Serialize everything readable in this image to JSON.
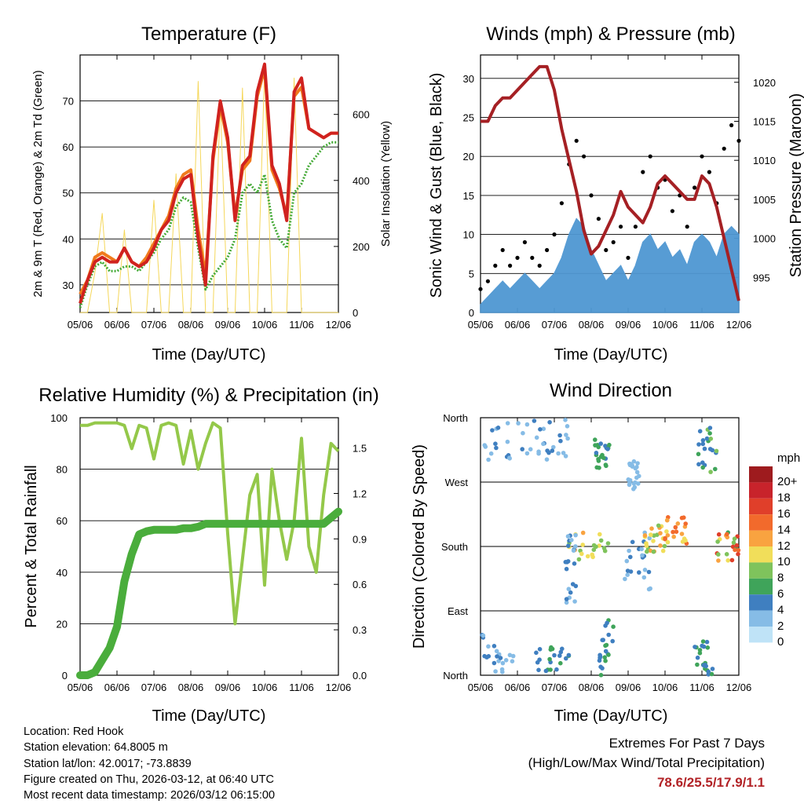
{
  "x_ticks": [
    "05/06",
    "06/06",
    "07/06",
    "08/06",
    "09/06",
    "10/06",
    "11/06",
    "12/06"
  ],
  "x_label": "Time (Day/UTC)",
  "colors": {
    "red": "#d0221f",
    "orange": "#f07a1c",
    "green": "#44aa36",
    "yellow": "#f5d75a",
    "maroon": "#a52024",
    "blue": "#4f97d2",
    "black": "#000000",
    "lightgreen": "#94c84a",
    "darkgreen": "#4aad3c"
  },
  "chart_data": [
    {
      "type": "line",
      "title": "Temperature (F)",
      "ylabel": "2m & 9m T (Red, Orange) & 2m Td (Green)",
      "y2label": "Solar Insolation (Yellow)",
      "ylim": [
        24,
        80
      ],
      "yticks": [
        30,
        40,
        50,
        60,
        70
      ],
      "y2lim": [
        0,
        780
      ],
      "y2ticks": [
        0,
        200,
        400,
        600
      ],
      "x": [
        0,
        0.2,
        0.4,
        0.6,
        0.8,
        1,
        1.2,
        1.4,
        1.6,
        1.8,
        2,
        2.2,
        2.4,
        2.6,
        2.8,
        3,
        3.2,
        3.4,
        3.6,
        3.8,
        4,
        4.2,
        4.4,
        4.6,
        4.8,
        5,
        5.2,
        5.4,
        5.6,
        5.8,
        6,
        6.2,
        6.4,
        6.6,
        6.8,
        7
      ],
      "series": [
        {
          "name": "2m T",
          "color": "red",
          "values": [
            26,
            31,
            35,
            36,
            35,
            35,
            38,
            35,
            34,
            35,
            38,
            42,
            44,
            50,
            53,
            54,
            40,
            30,
            58,
            70,
            62,
            44,
            56,
            58,
            72,
            78,
            56,
            52,
            44,
            72,
            75,
            64,
            63,
            62,
            63,
            63
          ]
        },
        {
          "name": "9m T",
          "color": "orange",
          "values": [
            28,
            31,
            36,
            37,
            36,
            35,
            38,
            35,
            34,
            36,
            39,
            42,
            45,
            51,
            54,
            55,
            42,
            32,
            57,
            69,
            61,
            45,
            55,
            57,
            71,
            77,
            55,
            51,
            45,
            71,
            73,
            64,
            63,
            62,
            63,
            63
          ]
        },
        {
          "name": "2m Td",
          "color": "green",
          "values": [
            25,
            30,
            34,
            35,
            33,
            33,
            34,
            34,
            33,
            35,
            37,
            40,
            42,
            47,
            49,
            48,
            38,
            29,
            32,
            34,
            36,
            40,
            50,
            52,
            50,
            54,
            44,
            40,
            38,
            50,
            52,
            56,
            58,
            60,
            61,
            61
          ]
        },
        {
          "name": "Solar",
          "color": "yellow",
          "values": [
            0,
            0,
            120,
            300,
            0,
            0,
            250,
            0,
            0,
            0,
            340,
            0,
            0,
            420,
            0,
            0,
            700,
            0,
            0,
            640,
            0,
            0,
            680,
            0,
            0,
            740,
            0,
            0,
            0,
            710,
            0,
            0,
            0,
            0,
            0,
            0
          ]
        }
      ]
    },
    {
      "type": "scatter",
      "title": "Winds (mph) & Pressure (mb)",
      "ylabel": "Sonic Wind & Gust (Blue, Black)",
      "y2label": "Station Pressure (Maroon)",
      "ylim": [
        0,
        33
      ],
      "yticks": [
        0,
        5,
        10,
        15,
        20,
        25,
        30
      ],
      "y2lim": [
        990.5,
        1023.5
      ],
      "y2ticks": [
        995,
        1000,
        1005,
        1010,
        1015,
        1020
      ],
      "x": [
        0,
        0.2,
        0.4,
        0.6,
        0.8,
        1,
        1.2,
        1.4,
        1.6,
        1.8,
        2,
        2.2,
        2.4,
        2.6,
        2.8,
        3,
        3.2,
        3.4,
        3.6,
        3.8,
        4,
        4.2,
        4.4,
        4.6,
        4.8,
        5,
        5.2,
        5.4,
        5.6,
        5.8,
        6,
        6.2,
        6.4,
        6.6,
        6.8,
        7
      ],
      "series": [
        {
          "name": "Sonic Wind",
          "color": "blue",
          "values": [
            1,
            2,
            3,
            4,
            3,
            4,
            5,
            4,
            3,
            4,
            5,
            7,
            10,
            12,
            11,
            8,
            6,
            4,
            5,
            6,
            4,
            6,
            9,
            10,
            8,
            9,
            7,
            8,
            6,
            9,
            10,
            9,
            7,
            10,
            11,
            10
          ]
        },
        {
          "name": "Gust",
          "color": "black",
          "values": [
            3,
            4,
            6,
            8,
            6,
            7,
            9,
            7,
            6,
            8,
            10,
            14,
            19,
            22,
            20,
            15,
            12,
            8,
            9,
            11,
            7,
            11,
            18,
            20,
            16,
            17,
            13,
            15,
            11,
            16,
            20,
            18,
            14,
            21,
            24,
            22
          ]
        },
        {
          "name": "Pressure",
          "color": "maroon",
          "values": [
            1015,
            1015,
            1017,
            1018,
            1018,
            1019,
            1020,
            1021,
            1022,
            1022,
            1019,
            1014,
            1010,
            1006,
            1001,
            998,
            999,
            1001,
            1003,
            1006,
            1004,
            1003,
            1002,
            1004,
            1007,
            1008,
            1007,
            1006,
            1005,
            1005,
            1008,
            1007,
            1004,
            1000,
            996,
            992
          ]
        }
      ]
    },
    {
      "type": "line",
      "title": "Relative Humidity (%) & Precipitation (in)",
      "ylabel": "Percent & Total Rainfall",
      "ylim": [
        0,
        100
      ],
      "yticks": [
        0,
        20,
        40,
        60,
        80,
        100
      ],
      "y2lim": [
        0,
        1.7
      ],
      "y2ticks": [
        "0.0",
        "0.3",
        "0.6",
        "0.9",
        "1.2",
        "1.5"
      ],
      "x": [
        0,
        0.2,
        0.4,
        0.6,
        0.8,
        1,
        1.2,
        1.4,
        1.6,
        1.8,
        2,
        2.2,
        2.4,
        2.6,
        2.8,
        3,
        3.2,
        3.4,
        3.6,
        3.8,
        4,
        4.2,
        4.4,
        4.6,
        4.8,
        5,
        5.2,
        5.4,
        5.6,
        5.8,
        6,
        6.2,
        6.4,
        6.6,
        6.8,
        7
      ],
      "series": [
        {
          "name": "RH",
          "color": "lightgreen",
          "values": [
            97,
            97,
            98,
            98,
            98,
            98,
            97,
            88,
            97,
            96,
            84,
            97,
            98,
            97,
            82,
            95,
            80,
            90,
            98,
            96,
            55,
            20,
            45,
            70,
            78,
            35,
            80,
            60,
            45,
            60,
            92,
            50,
            40,
            70,
            90,
            87
          ]
        },
        {
          "name": "Precip",
          "color": "darkgreen",
          "values": [
            0,
            0,
            0.02,
            0.1,
            0.18,
            0.32,
            0.62,
            0.8,
            0.93,
            0.95,
            0.96,
            0.96,
            0.96,
            0.96,
            0.97,
            0.97,
            0.98,
            1.0,
            1.0,
            1.0,
            1.0,
            1.0,
            1.0,
            1.0,
            1.0,
            1.0,
            1.0,
            1.0,
            1.0,
            1.0,
            1.0,
            1.0,
            1.0,
            1.0,
            1.04,
            1.08
          ]
        }
      ]
    },
    {
      "type": "scatter",
      "title": "Wind Direction",
      "ylabel": "Direction (Colored By Speed)",
      "yticks": [
        "North",
        "East",
        "South",
        "West",
        "North"
      ],
      "ylim": [
        0,
        360
      ],
      "legend_title": "mph",
      "legend": [
        "20+",
        "18",
        "16",
        "14",
        "12",
        "10",
        "8",
        "6",
        "4",
        "2",
        "0"
      ],
      "legend_colors": [
        "#9e1b1e",
        "#c8232b",
        "#e03f2a",
        "#f26a2c",
        "#f9a340",
        "#f1de5a",
        "#7fc35c",
        "#3fa45a",
        "#3f7fc0",
        "#86bce6",
        "#bfe3f7"
      ]
    }
  ],
  "info": {
    "location": "Location: Red Hook",
    "elevation": "Station elevation: 64.8005 m",
    "latlon": "Station lat/lon: 42.0017; -73.8839",
    "created": "Figure created on Thu, 2026-03-12, at 06:40 UTC",
    "recent": "Most recent data timestamp: 2026/03/12 06:15:00"
  },
  "extremes": {
    "line1": "Extremes For Past 7 Days",
    "line2": "(High/Low/Max Wind/Total Precipitation)",
    "values": "78.6/25.5/17.9/1.1"
  }
}
